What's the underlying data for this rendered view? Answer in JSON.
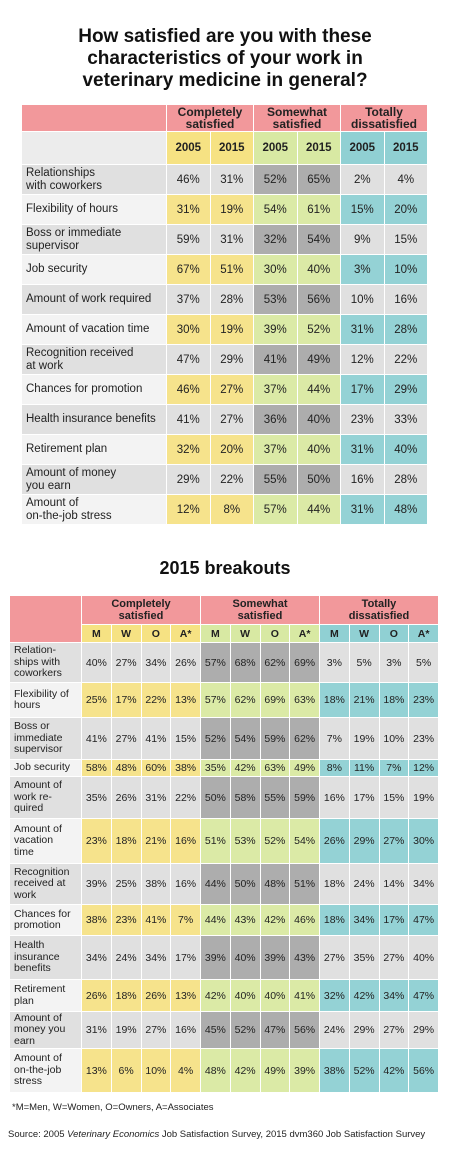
{
  "title": "How satisfied are you with these\ncharacteristics of your work in\nveterinary medicine in general?",
  "table1": {
    "groups": [
      {
        "title": "Completely\nsatisfied",
        "columns": [
          "2005",
          "2015"
        ]
      },
      {
        "title": "Somewhat\nsatisfied",
        "columns": [
          "2005",
          "2015"
        ]
      },
      {
        "title": "Totally\ndissatisfied",
        "columns": [
          "2005",
          "2015"
        ]
      }
    ],
    "rows": [
      {
        "label": "Relationships\nwith coworkers",
        "values": [
          "46%",
          "31%",
          "52%",
          "65%",
          "2%",
          "4%"
        ]
      },
      {
        "label": "Flexibility of hours",
        "values": [
          "31%",
          "19%",
          "54%",
          "61%",
          "15%",
          "20%"
        ]
      },
      {
        "label": "Boss or immediate\nsupervisor",
        "values": [
          "59%",
          "31%",
          "32%",
          "54%",
          "9%",
          "15%"
        ]
      },
      {
        "label": "Job security",
        "values": [
          "67%",
          "51%",
          "30%",
          "40%",
          "3%",
          "10%"
        ]
      },
      {
        "label": "Amount of work required",
        "values": [
          "37%",
          "28%",
          "53%",
          "56%",
          "10%",
          "16%"
        ]
      },
      {
        "label": "Amount of vacation time",
        "values": [
          "30%",
          "19%",
          "39%",
          "52%",
          "31%",
          "28%"
        ]
      },
      {
        "label": "Recognition received\nat work",
        "values": [
          "47%",
          "29%",
          "41%",
          "49%",
          "12%",
          "22%"
        ]
      },
      {
        "label": "Chances for promotion",
        "values": [
          "46%",
          "27%",
          "37%",
          "44%",
          "17%",
          "29%"
        ]
      },
      {
        "label": "Health insurance benefits",
        "values": [
          "41%",
          "27%",
          "36%",
          "40%",
          "23%",
          "33%"
        ]
      },
      {
        "label": "Retirement plan",
        "values": [
          "32%",
          "20%",
          "37%",
          "40%",
          "31%",
          "40%"
        ]
      },
      {
        "label": "Amount of money\nyou earn",
        "values": [
          "29%",
          "22%",
          "55%",
          "50%",
          "16%",
          "28%"
        ]
      },
      {
        "label": "Amount of\non-the-job stress",
        "values": [
          "12%",
          "8%",
          "57%",
          "44%",
          "31%",
          "48%"
        ]
      }
    ]
  },
  "table2": {
    "title": "2015 breakouts",
    "groups": [
      {
        "title": "Completely\nsatisfied",
        "columns": [
          "M",
          "W",
          "O",
          "A*"
        ]
      },
      {
        "title": "Somewhat\nsatisfied",
        "columns": [
          "M",
          "W",
          "O",
          "A*"
        ]
      },
      {
        "title": "Totally\ndissatisfied",
        "columns": [
          "M",
          "W",
          "O",
          "A*"
        ]
      }
    ],
    "rows": [
      {
        "label": "Relation-\nships with\ncoworkers",
        "values": [
          "40%",
          "27%",
          "34%",
          "26%",
          "57%",
          "68%",
          "62%",
          "69%",
          "3%",
          "5%",
          "3%",
          "5%"
        ]
      },
      {
        "label": "Flexibility of\nhours",
        "values": [
          "25%",
          "17%",
          "22%",
          "13%",
          "57%",
          "62%",
          "69%",
          "63%",
          "18%",
          "21%",
          "18%",
          "23%"
        ]
      },
      {
        "label": "Boss or\nimmediate\nsupervisor",
        "values": [
          "41%",
          "27%",
          "41%",
          "15%",
          "52%",
          "54%",
          "59%",
          "62%",
          "7%",
          "19%",
          "10%",
          "23%"
        ]
      },
      {
        "label": "Job security",
        "values": [
          "58%",
          "48%",
          "60%",
          "38%",
          "35%",
          "42%",
          "63%",
          "49%",
          "8%",
          "11%",
          "7%",
          "12%"
        ]
      },
      {
        "label": "Amount of\nwork re-\nquired",
        "values": [
          "35%",
          "26%",
          "31%",
          "22%",
          "50%",
          "58%",
          "55%",
          "59%",
          "16%",
          "17%",
          "15%",
          "19%"
        ]
      },
      {
        "label": "Amount of\nvacation\ntime",
        "values": [
          "23%",
          "18%",
          "21%",
          "16%",
          "51%",
          "53%",
          "52%",
          "54%",
          "26%",
          "29%",
          "27%",
          "30%"
        ]
      },
      {
        "label": "Recognition\nreceived at\nwork",
        "values": [
          "39%",
          "25%",
          "38%",
          "16%",
          "44%",
          "50%",
          "48%",
          "51%",
          "18%",
          "24%",
          "14%",
          "34%"
        ]
      },
      {
        "label": "Chances for\npromotion",
        "values": [
          "38%",
          "23%",
          "41%",
          "7%",
          "44%",
          "43%",
          "42%",
          "46%",
          "18%",
          "34%",
          "17%",
          "47%"
        ]
      },
      {
        "label": "Health\ninsurance\nbenefits",
        "values": [
          "34%",
          "24%",
          "34%",
          "17%",
          "39%",
          "40%",
          "39%",
          "43%",
          "27%",
          "35%",
          "27%",
          "40%"
        ]
      },
      {
        "label": "Retirement\nplan",
        "values": [
          "26%",
          "18%",
          "26%",
          "13%",
          "42%",
          "40%",
          "40%",
          "41%",
          "32%",
          "42%",
          "34%",
          "47%"
        ]
      },
      {
        "label": "Amount of\nmoney you\nearn",
        "values": [
          "31%",
          "19%",
          "27%",
          "16%",
          "45%",
          "52%",
          "47%",
          "56%",
          "24%",
          "29%",
          "27%",
          "29%"
        ]
      },
      {
        "label": "Amount of\non-the-job\nstress",
        "values": [
          "13%",
          "6%",
          "10%",
          "4%",
          "48%",
          "42%",
          "49%",
          "39%",
          "38%",
          "52%",
          "42%",
          "56%"
        ]
      }
    ]
  },
  "footnote": "*M=Men, W=Women, O=Owners, A=Associates",
  "source": {
    "prefix": "Source: 2005 ",
    "italic": "Veterinary Economics",
    "suffix": " Job Satisfaction Survey, 2015 dvm360 Job Satisfaction Survey"
  }
}
